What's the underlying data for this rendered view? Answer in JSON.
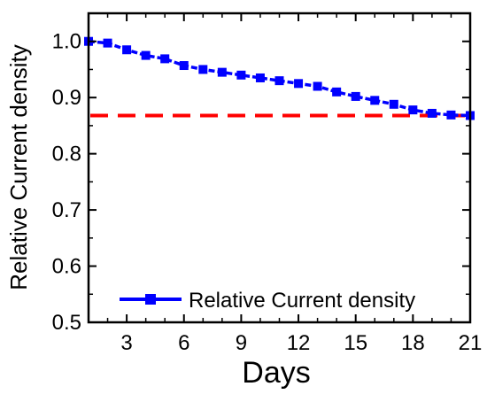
{
  "chart_data": {
    "type": "line",
    "title": "",
    "xlabel": "Days",
    "ylabel": "Relative Current density",
    "xlim": [
      1,
      21
    ],
    "ylim": [
      0.5,
      1.05
    ],
    "x_ticks": [
      3,
      6,
      9,
      12,
      15,
      18,
      21
    ],
    "y_ticks": [
      0.5,
      0.6,
      0.7,
      0.8,
      0.9,
      1.0
    ],
    "x_tick_labels": [
      "3",
      "6",
      "9",
      "12",
      "15",
      "18",
      "21"
    ],
    "y_tick_labels": [
      "0.5",
      "0.6",
      "0.7",
      "0.8",
      "0.9",
      "1.0"
    ],
    "grid": false,
    "legend_position": "bottom-right",
    "series": [
      {
        "name": "Relative Current density",
        "color": "#0000ff",
        "marker": "square",
        "line_style": "solid",
        "x": [
          1,
          2,
          3,
          4,
          5,
          6,
          7,
          8,
          9,
          10,
          11,
          12,
          13,
          14,
          15,
          16,
          17,
          18,
          19,
          20,
          21
        ],
        "values": [
          1.0,
          0.997,
          0.985,
          0.975,
          0.969,
          0.957,
          0.95,
          0.945,
          0.94,
          0.935,
          0.93,
          0.925,
          0.92,
          0.91,
          0.902,
          0.895,
          0.888,
          0.878,
          0.872,
          0.869,
          0.868
        ]
      }
    ],
    "reference_lines": [
      {
        "y": 0.868,
        "color": "#ff0000",
        "style": "dashed"
      }
    ]
  }
}
